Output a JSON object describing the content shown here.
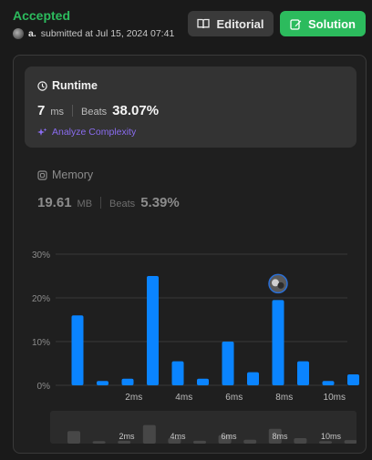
{
  "header": {
    "status": "Accepted",
    "user": "a.",
    "submitted_text": "submitted at Jul 15, 2024 07:41",
    "editorial_label": "Editorial",
    "solution_label": "Solution"
  },
  "runtime": {
    "title": "Runtime",
    "value": "7",
    "unit": "ms",
    "beats_label": "Beats",
    "beats_value": "38.07%",
    "analyze_label": "Analyze Complexity"
  },
  "memory": {
    "title": "Memory",
    "value": "19.61",
    "unit": "MB",
    "beats_label": "Beats",
    "beats_value": "5.39%"
  },
  "colors": {
    "accepted": "#2cbb5d",
    "bar": "#0a84ff",
    "analyze": "#8a6cf0"
  },
  "icons": {
    "editorial": "book-icon",
    "solution": "edit-icon",
    "runtime": "clock-icon",
    "memory": "chip-icon",
    "analyze": "sparkle-icon"
  },
  "chart_data": {
    "type": "bar",
    "y_ticks": [
      "30%",
      "20%",
      "10%",
      "0%"
    ],
    "ylim": [
      0,
      30
    ],
    "x_tick_labels": [
      "2ms",
      "4ms",
      "6ms",
      "8ms",
      "10ms"
    ],
    "values": [
      16,
      1,
      1.5,
      25,
      5.5,
      1.5,
      10,
      3,
      19.5,
      5.5,
      1,
      2.5
    ],
    "highlight_index": 8,
    "mini_values": [
      16,
      1,
      1.5,
      25,
      5.5,
      1.5,
      10,
      3,
      19.5,
      5.5,
      1,
      2.5
    ],
    "mini_labels": [
      "2ms",
      "4ms",
      "6ms",
      "8ms",
      "10ms"
    ]
  }
}
